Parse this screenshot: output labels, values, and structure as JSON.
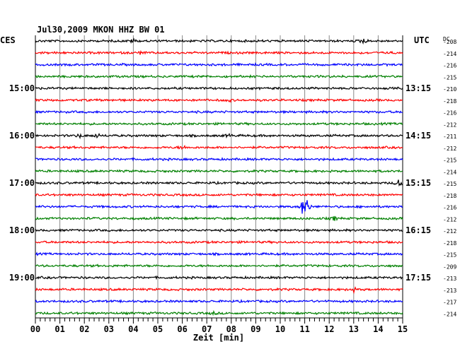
{
  "header": {
    "title": "Jul30,2009   MKON HHZ BW 01",
    "left_zone": "CES",
    "right_zone": "UTC",
    "dc_label": "DC"
  },
  "chart_data": {
    "type": "line",
    "title": "Jul30,2009   MKON HHZ BW 01",
    "xlabel": "Zeit [min]",
    "xlim": [
      0,
      15
    ],
    "x_ticks": [
      "00",
      "01",
      "02",
      "03",
      "04",
      "05",
      "06",
      "07",
      "08",
      "09",
      "10",
      "11",
      "12",
      "13",
      "14",
      "15"
    ],
    "trace_colors": [
      "#000000",
      "#ff0000",
      "#0000ff",
      "#008000"
    ],
    "left_hour_labels": [
      {
        "trace": 4,
        "label": "15:00"
      },
      {
        "trace": 8,
        "label": "16:00"
      },
      {
        "trace": 12,
        "label": "17:00"
      },
      {
        "trace": 16,
        "label": "18:00"
      },
      {
        "trace": 20,
        "label": "19:00"
      }
    ],
    "right_hour_labels": [
      {
        "trace": 4,
        "label": "13:15"
      },
      {
        "trace": 8,
        "label": "14:15"
      },
      {
        "trace": 12,
        "label": "15:15"
      },
      {
        "trace": 16,
        "label": "16:15"
      },
      {
        "trace": 20,
        "label": "17:15"
      }
    ],
    "dc_offsets": [
      "-208",
      "-214",
      "-216",
      "-215",
      "-210",
      "-218",
      "-216",
      "-212",
      "-211",
      "-212",
      "-215",
      "-214",
      "-215",
      "-218",
      "-216",
      "-212",
      "-212",
      "-218",
      "-215",
      "-209",
      "-213",
      "-213",
      "-217",
      "-214"
    ],
    "events": [
      {
        "trace": 0,
        "minute": 4.0,
        "amplitude": 3
      },
      {
        "trace": 0,
        "minute": 13.4,
        "amplitude": 4
      },
      {
        "trace": 1,
        "minute": 4.3,
        "amplitude": 2
      },
      {
        "trace": 5,
        "minute": 7.9,
        "amplitude": 2
      },
      {
        "trace": 8,
        "minute": 1.8,
        "amplitude": 3
      },
      {
        "trace": 8,
        "minute": 2.5,
        "amplitude": 3
      },
      {
        "trace": 8,
        "minute": 7.9,
        "amplitude": 2
      },
      {
        "trace": 9,
        "minute": 6.0,
        "amplitude": 3
      },
      {
        "trace": 12,
        "minute": 14.9,
        "amplitude": 10
      },
      {
        "trace": 14,
        "minute": 11.0,
        "amplitude": 28
      },
      {
        "trace": 15,
        "minute": 12.2,
        "amplitude": 3
      },
      {
        "trace": 21,
        "minute": 13.0,
        "amplitude": 3
      },
      {
        "trace": 23,
        "minute": 7.3,
        "amplitude": 2
      }
    ]
  }
}
